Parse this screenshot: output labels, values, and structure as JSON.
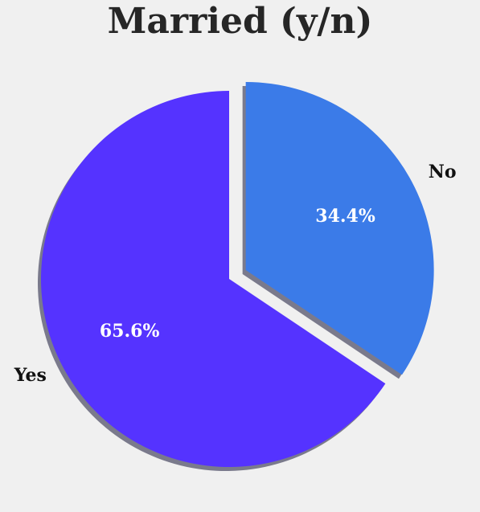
{
  "chart_data": {
    "type": "pie",
    "title": "Married (y/n)",
    "categories": [
      "No",
      "Yes"
    ],
    "values": [
      34.4,
      65.6
    ],
    "value_labels": [
      "34.4%",
      "65.6%"
    ],
    "colors": [
      "#3b7be8",
      "#5533ff"
    ],
    "exploded": [
      "No"
    ],
    "shadow": true,
    "start_angle_deg": 90,
    "direction": "clockwise",
    "legend": "none"
  }
}
